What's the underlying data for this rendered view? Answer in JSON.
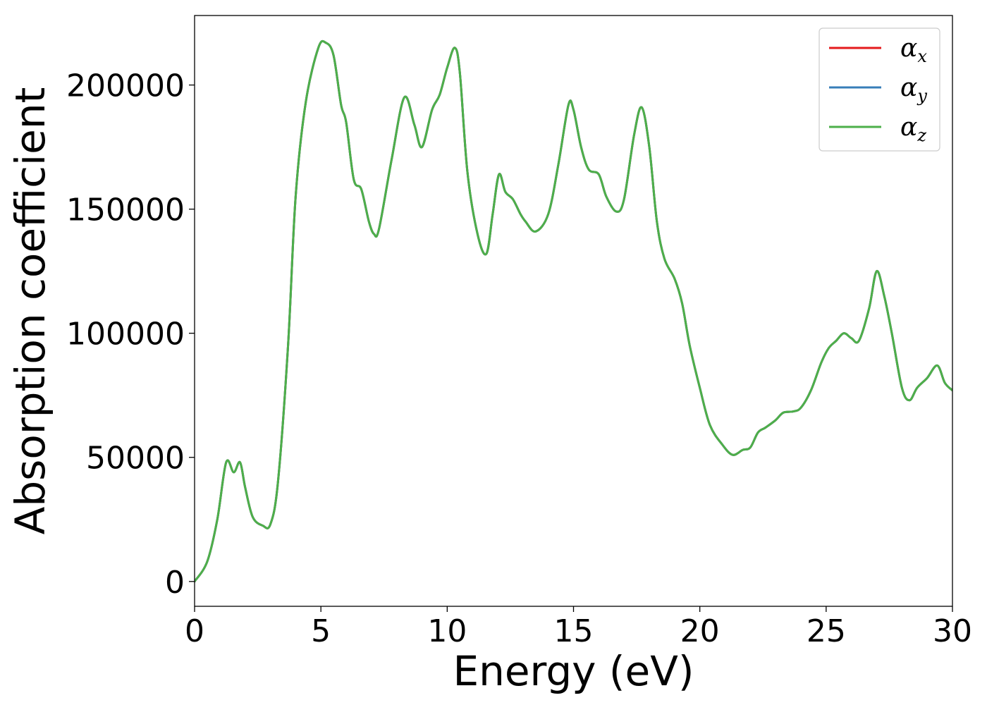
{
  "chart_data": {
    "type": "line",
    "xlabel": "Energy (eV)",
    "ylabel": "Absorption coefficient",
    "xlim": [
      0,
      30
    ],
    "ylim": [
      -10000,
      228000
    ],
    "xticks": [
      0,
      5,
      10,
      15,
      20,
      25,
      30
    ],
    "xtick_labels": [
      "0",
      "5",
      "10",
      "15",
      "20",
      "25",
      "30"
    ],
    "yticks": [
      0,
      50000,
      100000,
      150000,
      200000
    ],
    "ytick_labels": [
      "0",
      "50000",
      "100000",
      "150000",
      "200000"
    ],
    "grid": false,
    "legend": {
      "position": "top-right",
      "entries": [
        {
          "symbol": "α",
          "subscript": "x",
          "color": "#e41a1c"
        },
        {
          "symbol": "α",
          "subscript": "y",
          "color": "#377eb8"
        },
        {
          "symbol": "α",
          "subscript": "z",
          "color": "#4daf4a"
        }
      ]
    },
    "x": [
      0,
      0.5,
      0.9,
      1.25,
      1.55,
      1.8,
      2.0,
      2.3,
      2.7,
      3.0,
      3.3,
      3.7,
      4.0,
      4.4,
      4.9,
      5.2,
      5.5,
      5.8,
      6.0,
      6.3,
      6.6,
      6.9,
      7.1,
      7.3,
      7.8,
      8.3,
      8.7,
      9.0,
      9.4,
      9.7,
      10.0,
      10.3,
      10.5,
      10.8,
      11.2,
      11.55,
      11.8,
      12.05,
      12.3,
      12.6,
      12.9,
      13.1,
      13.5,
      14.0,
      14.4,
      14.8,
      15.0,
      15.3,
      15.6,
      16.0,
      16.3,
      16.7,
      17.0,
      17.4,
      17.7,
      18.0,
      18.3,
      18.6,
      19.0,
      19.3,
      19.6,
      20.0,
      20.4,
      20.9,
      21.3,
      21.7,
      22.0,
      22.3,
      22.6,
      23.0,
      23.3,
      23.7,
      24.0,
      24.4,
      24.8,
      25.1,
      25.4,
      25.7,
      26.0,
      26.3,
      26.7,
      27.0,
      27.3,
      27.6,
      28.0,
      28.3,
      28.6,
      29.0,
      29.4,
      29.7,
      30.0
    ],
    "series": [
      {
        "name": "α_x",
        "color": "#e41a1c",
        "y": [
          0,
          8000,
          25000,
          48000,
          44000,
          48000,
          38000,
          26000,
          22500,
          23000,
          40000,
          95000,
          155000,
          193000,
          215000,
          217000,
          212000,
          192000,
          185000,
          162000,
          158000,
          145000,
          140000,
          142000,
          170000,
          195000,
          184000,
          175000,
          190000,
          196000,
          207000,
          215000,
          205000,
          165000,
          140000,
          132000,
          148000,
          164000,
          157000,
          154000,
          148000,
          145000,
          141000,
          148000,
          168000,
          192000,
          190000,
          175000,
          166000,
          164000,
          155000,
          149000,
          154000,
          180000,
          191000,
          175000,
          145000,
          130000,
          122000,
          112000,
          95000,
          78000,
          63000,
          55000,
          51000,
          53000,
          54000,
          60000,
          62000,
          65000,
          68000,
          68500,
          70000,
          77000,
          88000,
          94000,
          97000,
          100000,
          98000,
          97000,
          110000,
          125000,
          115000,
          100000,
          78000,
          73000,
          78000,
          82000,
          87000,
          80000,
          77000
        ]
      },
      {
        "name": "α_y",
        "color": "#377eb8",
        "y": [
          0,
          8000,
          25000,
          48000,
          44000,
          48000,
          38000,
          26000,
          22500,
          23000,
          40000,
          95000,
          155000,
          193000,
          215000,
          217000,
          212000,
          192000,
          185000,
          162000,
          158000,
          145000,
          140000,
          142000,
          170000,
          195000,
          184000,
          175000,
          190000,
          196000,
          207000,
          215000,
          205000,
          165000,
          140000,
          132000,
          148000,
          164000,
          157000,
          154000,
          148000,
          145000,
          141000,
          148000,
          168000,
          192000,
          190000,
          175000,
          166000,
          164000,
          155000,
          149000,
          154000,
          180000,
          191000,
          175000,
          145000,
          130000,
          122000,
          112000,
          95000,
          78000,
          63000,
          55000,
          51000,
          53000,
          54000,
          60000,
          62000,
          65000,
          68000,
          68500,
          70000,
          77000,
          88000,
          94000,
          97000,
          100000,
          98000,
          97000,
          110000,
          125000,
          115000,
          100000,
          78000,
          73000,
          78000,
          82000,
          87000,
          80000,
          77000
        ]
      },
      {
        "name": "α_z",
        "color": "#4daf4a",
        "y": [
          0,
          8000,
          25000,
          48000,
          44000,
          48000,
          38000,
          26000,
          22500,
          23000,
          40000,
          95000,
          155000,
          193000,
          215000,
          217000,
          212000,
          192000,
          185000,
          162000,
          158000,
          145000,
          140000,
          142000,
          170000,
          195000,
          184000,
          175000,
          190000,
          196000,
          207000,
          215000,
          205000,
          165000,
          140000,
          132000,
          148000,
          164000,
          157000,
          154000,
          148000,
          145000,
          141000,
          148000,
          168000,
          192000,
          190000,
          175000,
          166000,
          164000,
          155000,
          149000,
          154000,
          180000,
          191000,
          175000,
          145000,
          130000,
          122000,
          112000,
          95000,
          78000,
          63000,
          55000,
          51000,
          53000,
          54000,
          60000,
          62000,
          65000,
          68000,
          68500,
          70000,
          77000,
          88000,
          94000,
          97000,
          100000,
          98000,
          97000,
          110000,
          125000,
          115000,
          100000,
          78000,
          73000,
          78000,
          82000,
          87000,
          80000,
          77000
        ]
      }
    ]
  }
}
